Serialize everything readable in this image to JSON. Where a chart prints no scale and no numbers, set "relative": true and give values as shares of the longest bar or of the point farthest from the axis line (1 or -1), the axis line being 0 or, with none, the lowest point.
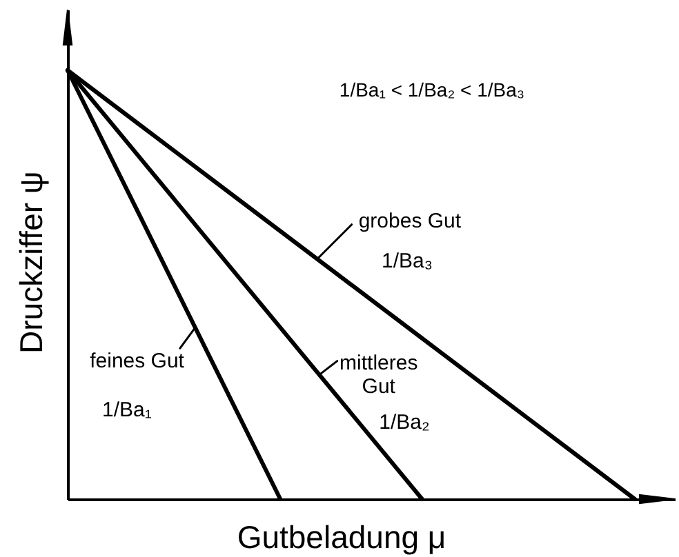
{
  "chart_data": {
    "type": "line",
    "relative": true,
    "xlabel": "Gutbeladung μ",
    "ylabel": "Druckziffer ψ",
    "line_style": "solid",
    "categories": [
      null,
      null,
      null,
      null,
      null,
      null,
      null,
      null,
      null
    ],
    "series": [
      {
        "name": "feines Gut",
        "color": "#000000",
        "values": [
          1,
          0.667,
          0.333,
          0,
          null,
          null,
          null,
          null,
          null
        ]
      },
      {
        "name": "mittleres Gut",
        "color": "#000000",
        "values": [
          1,
          0.8,
          0.6,
          0.4,
          0.2,
          0,
          null,
          null,
          null
        ]
      },
      {
        "name": "grobes Gut",
        "color": "#000000",
        "values": [
          1,
          0.875,
          0.75,
          0.625,
          0.5,
          0.375,
          0.25,
          0.125,
          0
        ]
      }
    ],
    "annotations": [
      "1/Ba₁ < 1/Ba₂ < 1/Ba₃",
      "1/Ba₁",
      "1/Ba₂",
      "1/Ba₃"
    ]
  }
}
